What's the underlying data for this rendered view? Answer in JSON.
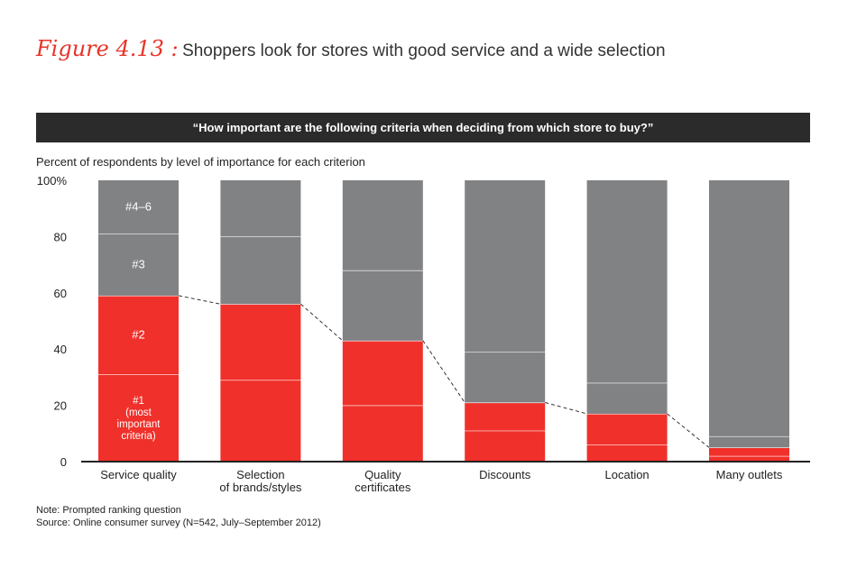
{
  "figure": {
    "label": "Figure 4.13 :",
    "title": "Shoppers look for stores with good service and a wide selection"
  },
  "question": "“How important are the following criteria when deciding from which store to buy?”",
  "subtitle": "Percent of respondents by level of importance for each criterion",
  "note": "Note: Prompted ranking question",
  "source": "Source: Online consumer survey (N=542, July–September 2012)",
  "colors": {
    "red": "#f0302a",
    "gray": "#818284",
    "dark": "#2b2b2b"
  },
  "chart_data": {
    "type": "bar",
    "stacked": true,
    "categories": [
      "Service quality",
      "Selection of brands/styles",
      "Quality certificates",
      "Discounts",
      "Location",
      "Many outlets"
    ],
    "category_label_lines": [
      [
        "Service quality"
      ],
      [
        "Selection",
        "of brands/styles"
      ],
      [
        "Quality",
        "certificates"
      ],
      [
        "Discounts"
      ],
      [
        "Location"
      ],
      [
        "Many outlets"
      ]
    ],
    "series": [
      {
        "name": "#1 (most important criteria)",
        "label_lines": [
          "#1",
          "(most",
          "important",
          "criteria)"
        ],
        "color": "#f0302a",
        "values": [
          31,
          29,
          20,
          11,
          6,
          2
        ]
      },
      {
        "name": "#2",
        "label_lines": [
          "#2"
        ],
        "color": "#f0302a",
        "values": [
          28,
          27,
          23,
          10,
          11,
          3
        ]
      },
      {
        "name": "#3",
        "label_lines": [
          "#3"
        ],
        "color": "#818284",
        "values": [
          22,
          24,
          25,
          18,
          11,
          4
        ]
      },
      {
        "name": "#4–6",
        "label_lines": [
          "#4–6"
        ],
        "color": "#818284",
        "values": [
          19,
          20,
          32,
          61,
          72,
          91
        ]
      }
    ],
    "ylim": [
      0,
      100
    ],
    "yticks": [
      0,
      20,
      40,
      60,
      80,
      100
    ],
    "ytick_labels": [
      "0",
      "20",
      "40",
      "60",
      "80",
      "100%"
    ],
    "connector": "dashed line joining tops of the #1+#2 segments",
    "labels_shown_on": "Service quality"
  }
}
